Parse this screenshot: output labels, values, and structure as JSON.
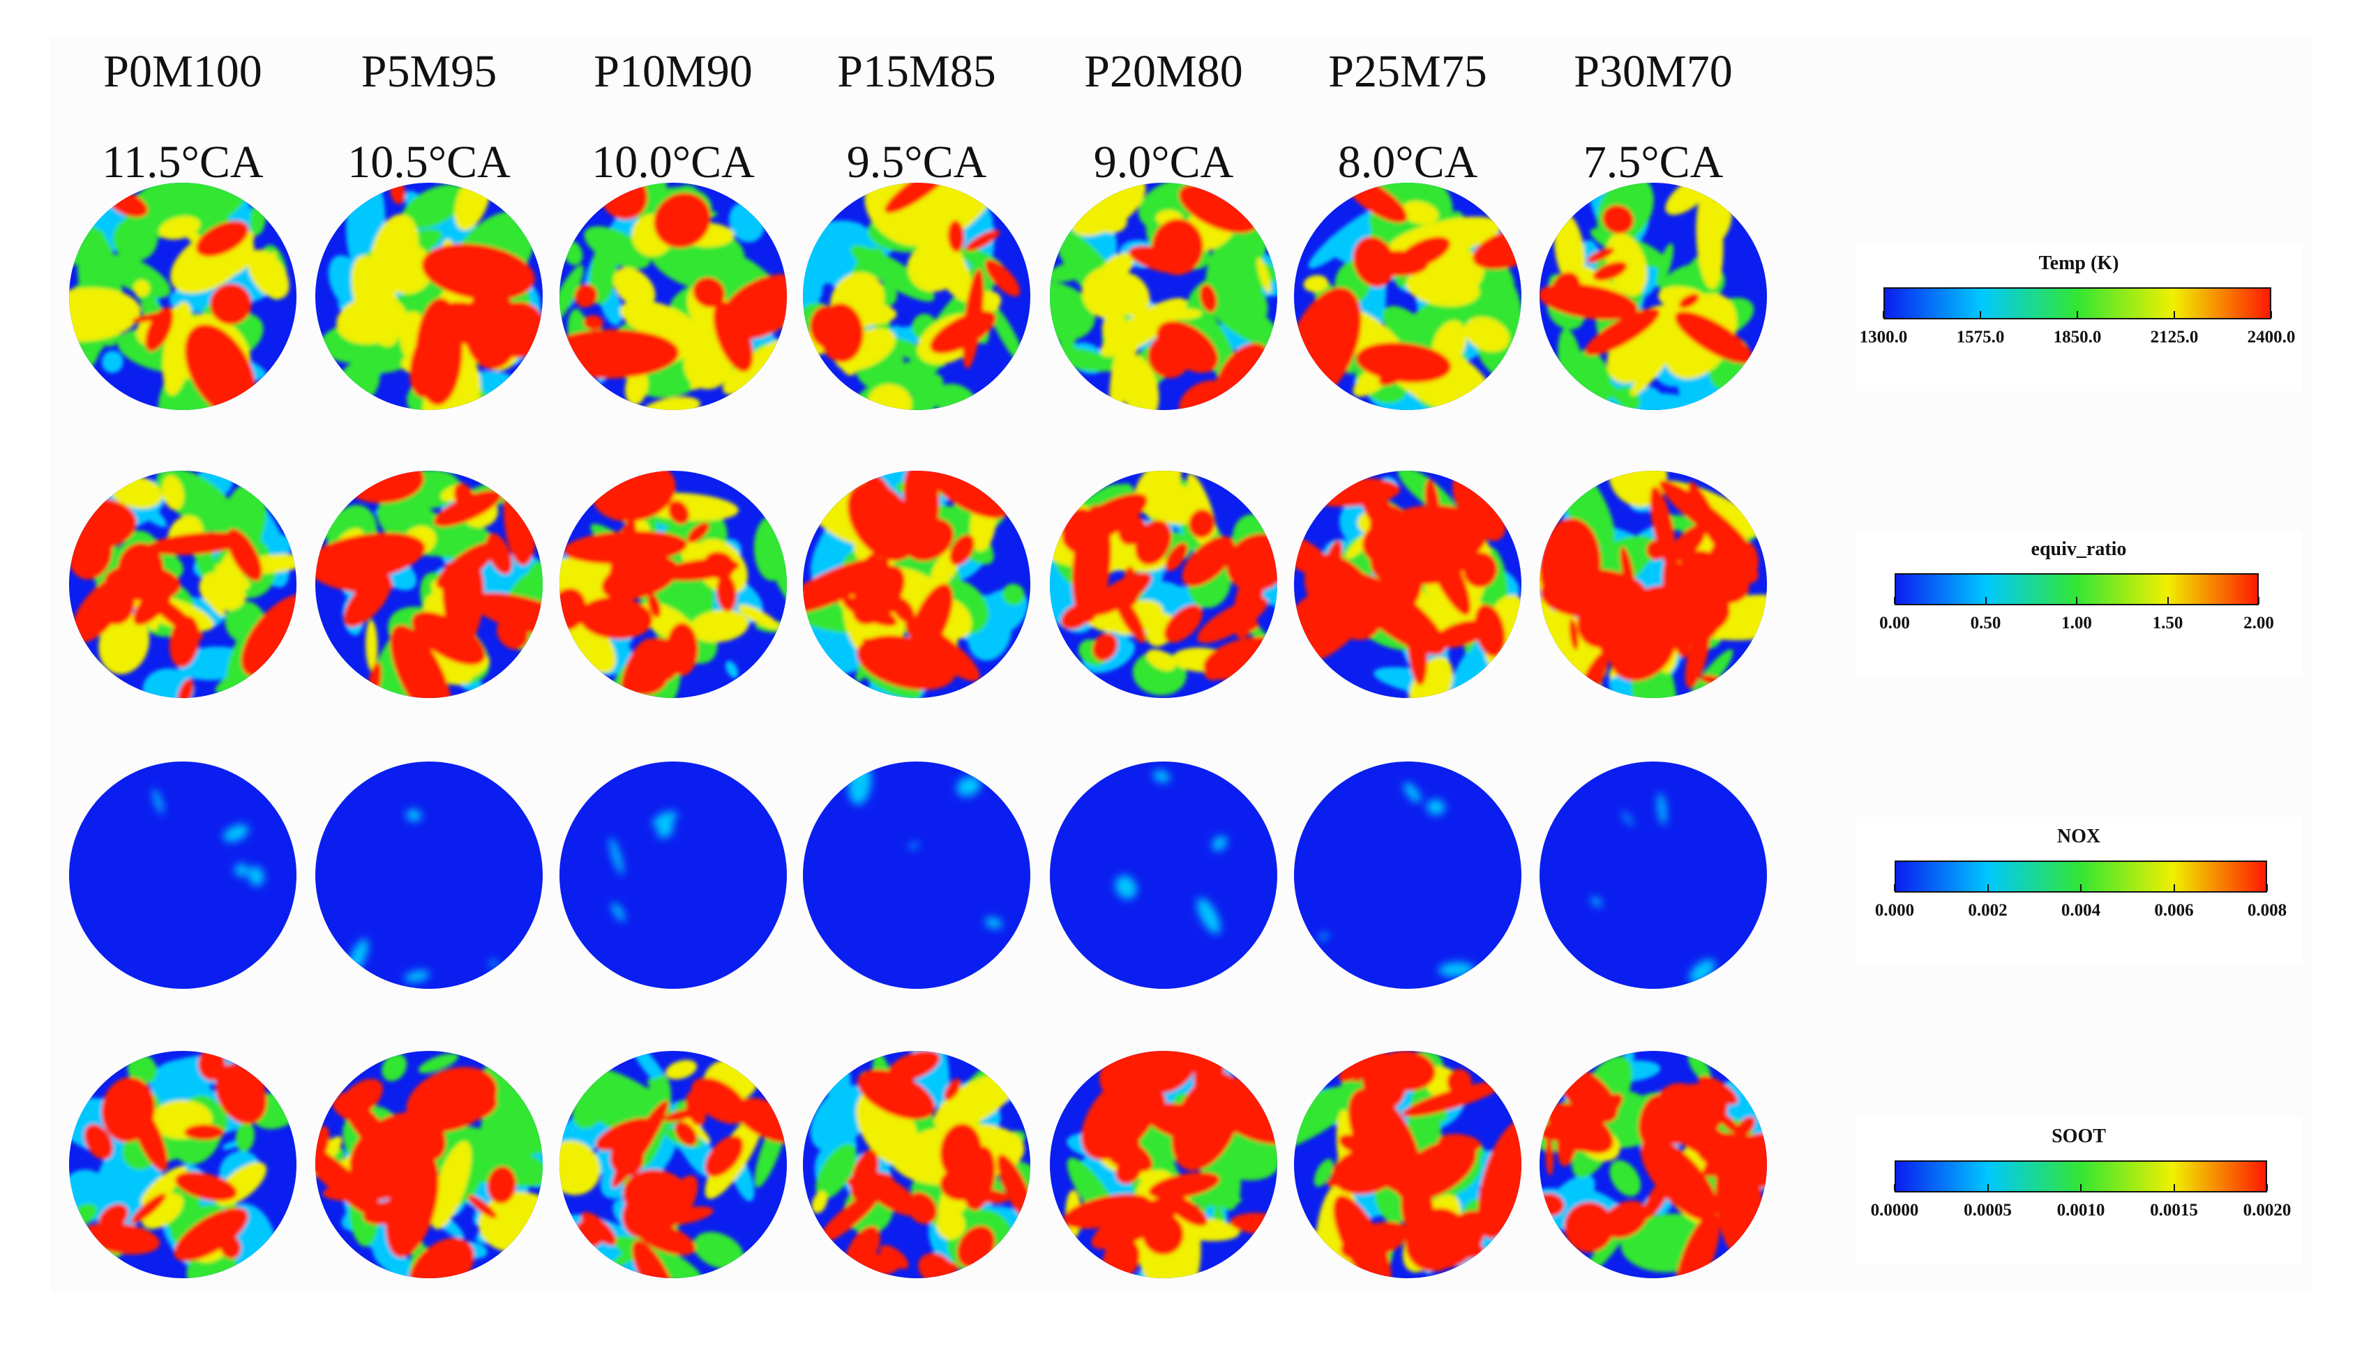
{
  "columns": [
    {
      "case": "P0M100",
      "angle": "11.5°CA"
    },
    {
      "case": "P5M95",
      "angle": "10.5°CA"
    },
    {
      "case": "P10M90",
      "angle": "10.0°CA"
    },
    {
      "case": "P15M85",
      "angle": "9.5°CA"
    },
    {
      "case": "P20M80",
      "angle": "9.0°CA"
    },
    {
      "case": "P25M75",
      "angle": "8.0°CA"
    },
    {
      "case": "P30M70",
      "angle": "7.5°CA"
    }
  ],
  "legends": [
    {
      "title": "Temp (K)",
      "ticks": [
        "1300.0",
        "1575.0",
        "1850.0",
        "2125.0",
        "2400.0"
      ],
      "field": "temperature"
    },
    {
      "title": "equiv_ratio",
      "ticks": [
        "0.00",
        "0.50",
        "1.00",
        "1.50",
        "2.00"
      ],
      "field": "equivalence-ratio"
    },
    {
      "title": "NOX",
      "ticks": [
        "0.000",
        "0.002",
        "0.004",
        "0.006",
        "0.008"
      ],
      "field": "nox"
    },
    {
      "title": "SOOT",
      "ticks": [
        "0.0000",
        "0.0005",
        "0.0010",
        "0.0015",
        "0.0020"
      ],
      "field": "soot"
    }
  ],
  "colors": {
    "low": "#0a1ef0",
    "cyan": "#00c8ff",
    "green": "#33e633",
    "yellow": "#f0f000",
    "high": "#ff1a00"
  }
}
